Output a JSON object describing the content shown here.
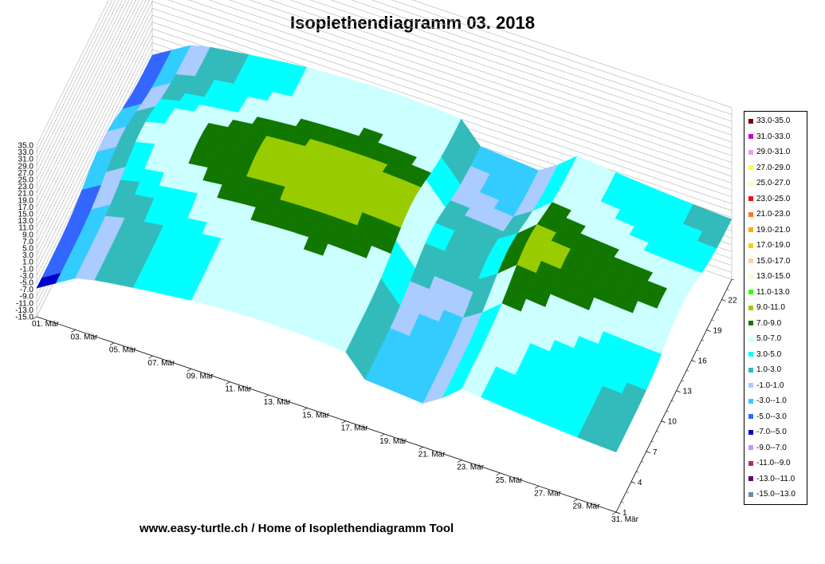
{
  "chart_data": {
    "type": "surface",
    "title": "Isoplethendiagramm 03. 2018",
    "footer": "www.easy-turtle.ch / Home of Isoplethendiagramm Tool",
    "z_ticks": [
      "35.0",
      "33.0",
      "31.0",
      "29.0",
      "27.0",
      "25.0",
      "23.0",
      "21.0",
      "19.0",
      "17.0",
      "15.0",
      "13.0",
      "11.0",
      "9.0",
      "7.0",
      "5.0",
      "3.0",
      "1.0",
      "-1.0",
      "-3.0",
      "-5.0",
      "-7.0",
      "-9.0",
      "-11.0",
      "-13.0",
      "-15.0"
    ],
    "zlim": [
      -15,
      35
    ],
    "x_ticks": [
      "01. Mär",
      "03. Mär",
      "05. Mär",
      "07. Mär",
      "09. Mär",
      "11. Mär",
      "13. Mär",
      "15. Mär",
      "17. Mär",
      "19. Mär",
      "21. Mär",
      "23. Mär",
      "25. Mär",
      "27. Mär",
      "29. Mär",
      "31. Mär"
    ],
    "y_ticks": [
      "1",
      "4",
      "7",
      "10",
      "13",
      "16",
      "19",
      "22"
    ],
    "legend": [
      {
        "label": "33.0-35.0",
        "color": "#800000"
      },
      {
        "label": "31.0-33.0",
        "color": "#cc00cc"
      },
      {
        "label": "29.0-31.0",
        "color": "#e8a0e8"
      },
      {
        "label": "27.0-29.0",
        "color": "#ffff33"
      },
      {
        "label": "25.0-27.0",
        "color": "#ffffaa"
      },
      {
        "label": "23.0-25.0",
        "color": "#ee1111"
      },
      {
        "label": "21.0-23.0",
        "color": "#ff7722"
      },
      {
        "label": "19.0-21.0",
        "color": "#ffaa00"
      },
      {
        "label": "17.0-19.0",
        "color": "#ffcc00"
      },
      {
        "label": "15.0-17.0",
        "color": "#ffd0a0"
      },
      {
        "label": "13.0-15.0",
        "color": "#eeffcc"
      },
      {
        "label": "11.0-13.0",
        "color": "#33ff00"
      },
      {
        "label": "9.0-11.0",
        "color": "#99cc00"
      },
      {
        "label": "7.0-9.0",
        "color": "#117700"
      },
      {
        "label": "5.0-7.0",
        "color": "#ccffff"
      },
      {
        "label": "3.0-5.0",
        "color": "#00ffff"
      },
      {
        "label": "1.0-3.0",
        "color": "#33bbbb"
      },
      {
        "label": "-1.0-1.0",
        "color": "#aaccff"
      },
      {
        "label": "-3.0--1.0",
        "color": "#33ccff"
      },
      {
        "label": "-5.0--3.0",
        "color": "#3366ff"
      },
      {
        "label": "-7.0--5.0",
        "color": "#0000cc"
      },
      {
        "label": "-9.0--7.0",
        "color": "#bb99ff"
      },
      {
        "label": "-11.0--9.0",
        "color": "#aa3366"
      },
      {
        "label": "-13.0--11.0",
        "color": "#660066"
      },
      {
        "label": "-15.0--13.0",
        "color": "#778899"
      }
    ],
    "grid": true,
    "legend_position": "right"
  }
}
